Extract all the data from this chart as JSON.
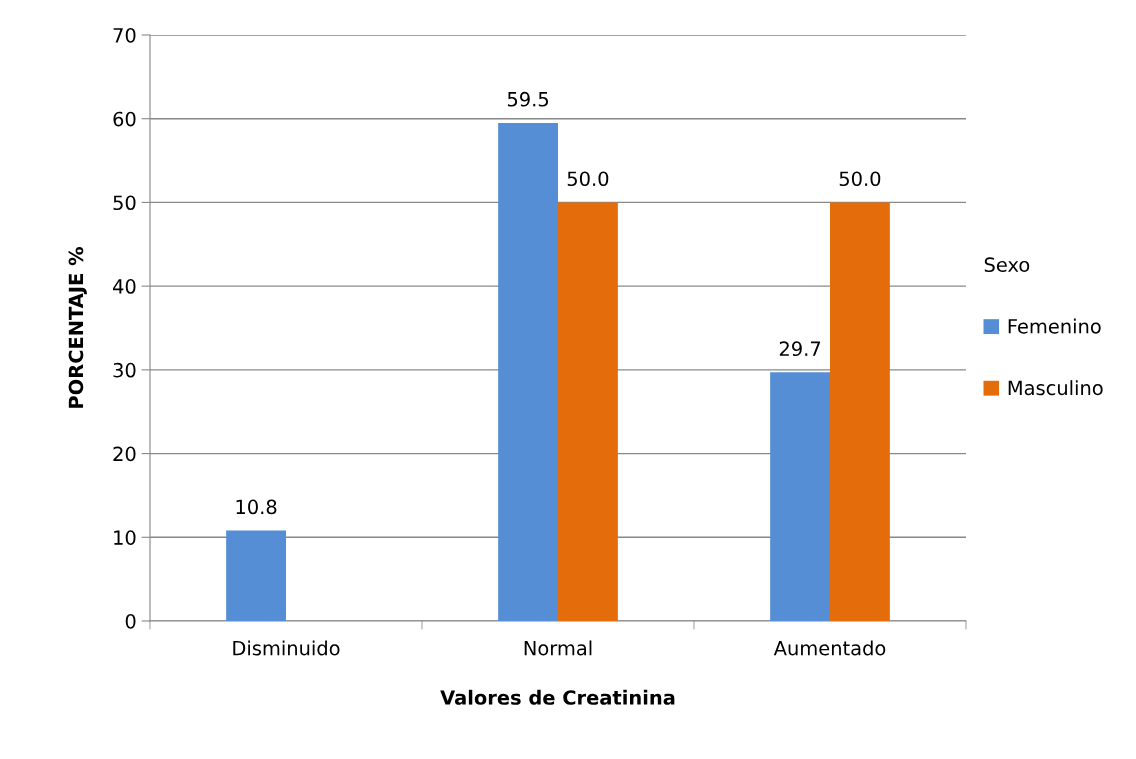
{
  "chart_data": {
    "type": "bar",
    "xlabel": "Valores de Creatinina",
    "ylabel": "PORCENTAJE %",
    "legend_title": "Sexo",
    "categories": [
      "Disminuido",
      "Normal",
      "Aumentado"
    ],
    "series": [
      {
        "name": "Femenino",
        "color": "#558ed5",
        "values": [
          10.8,
          59.5,
          29.7
        ],
        "value_labels": [
          "10.8",
          "59.5",
          "29.7"
        ]
      },
      {
        "name": "Masculino",
        "color": "#e46c0a",
        "values": [
          null,
          50.0,
          50.0
        ],
        "value_labels": [
          null,
          "50.0",
          "50.0"
        ]
      }
    ],
    "ylim": [
      0,
      70
    ],
    "yticks": [
      0,
      10,
      20,
      30,
      40,
      50,
      60,
      70
    ],
    "grid": "y",
    "legend": "right"
  }
}
